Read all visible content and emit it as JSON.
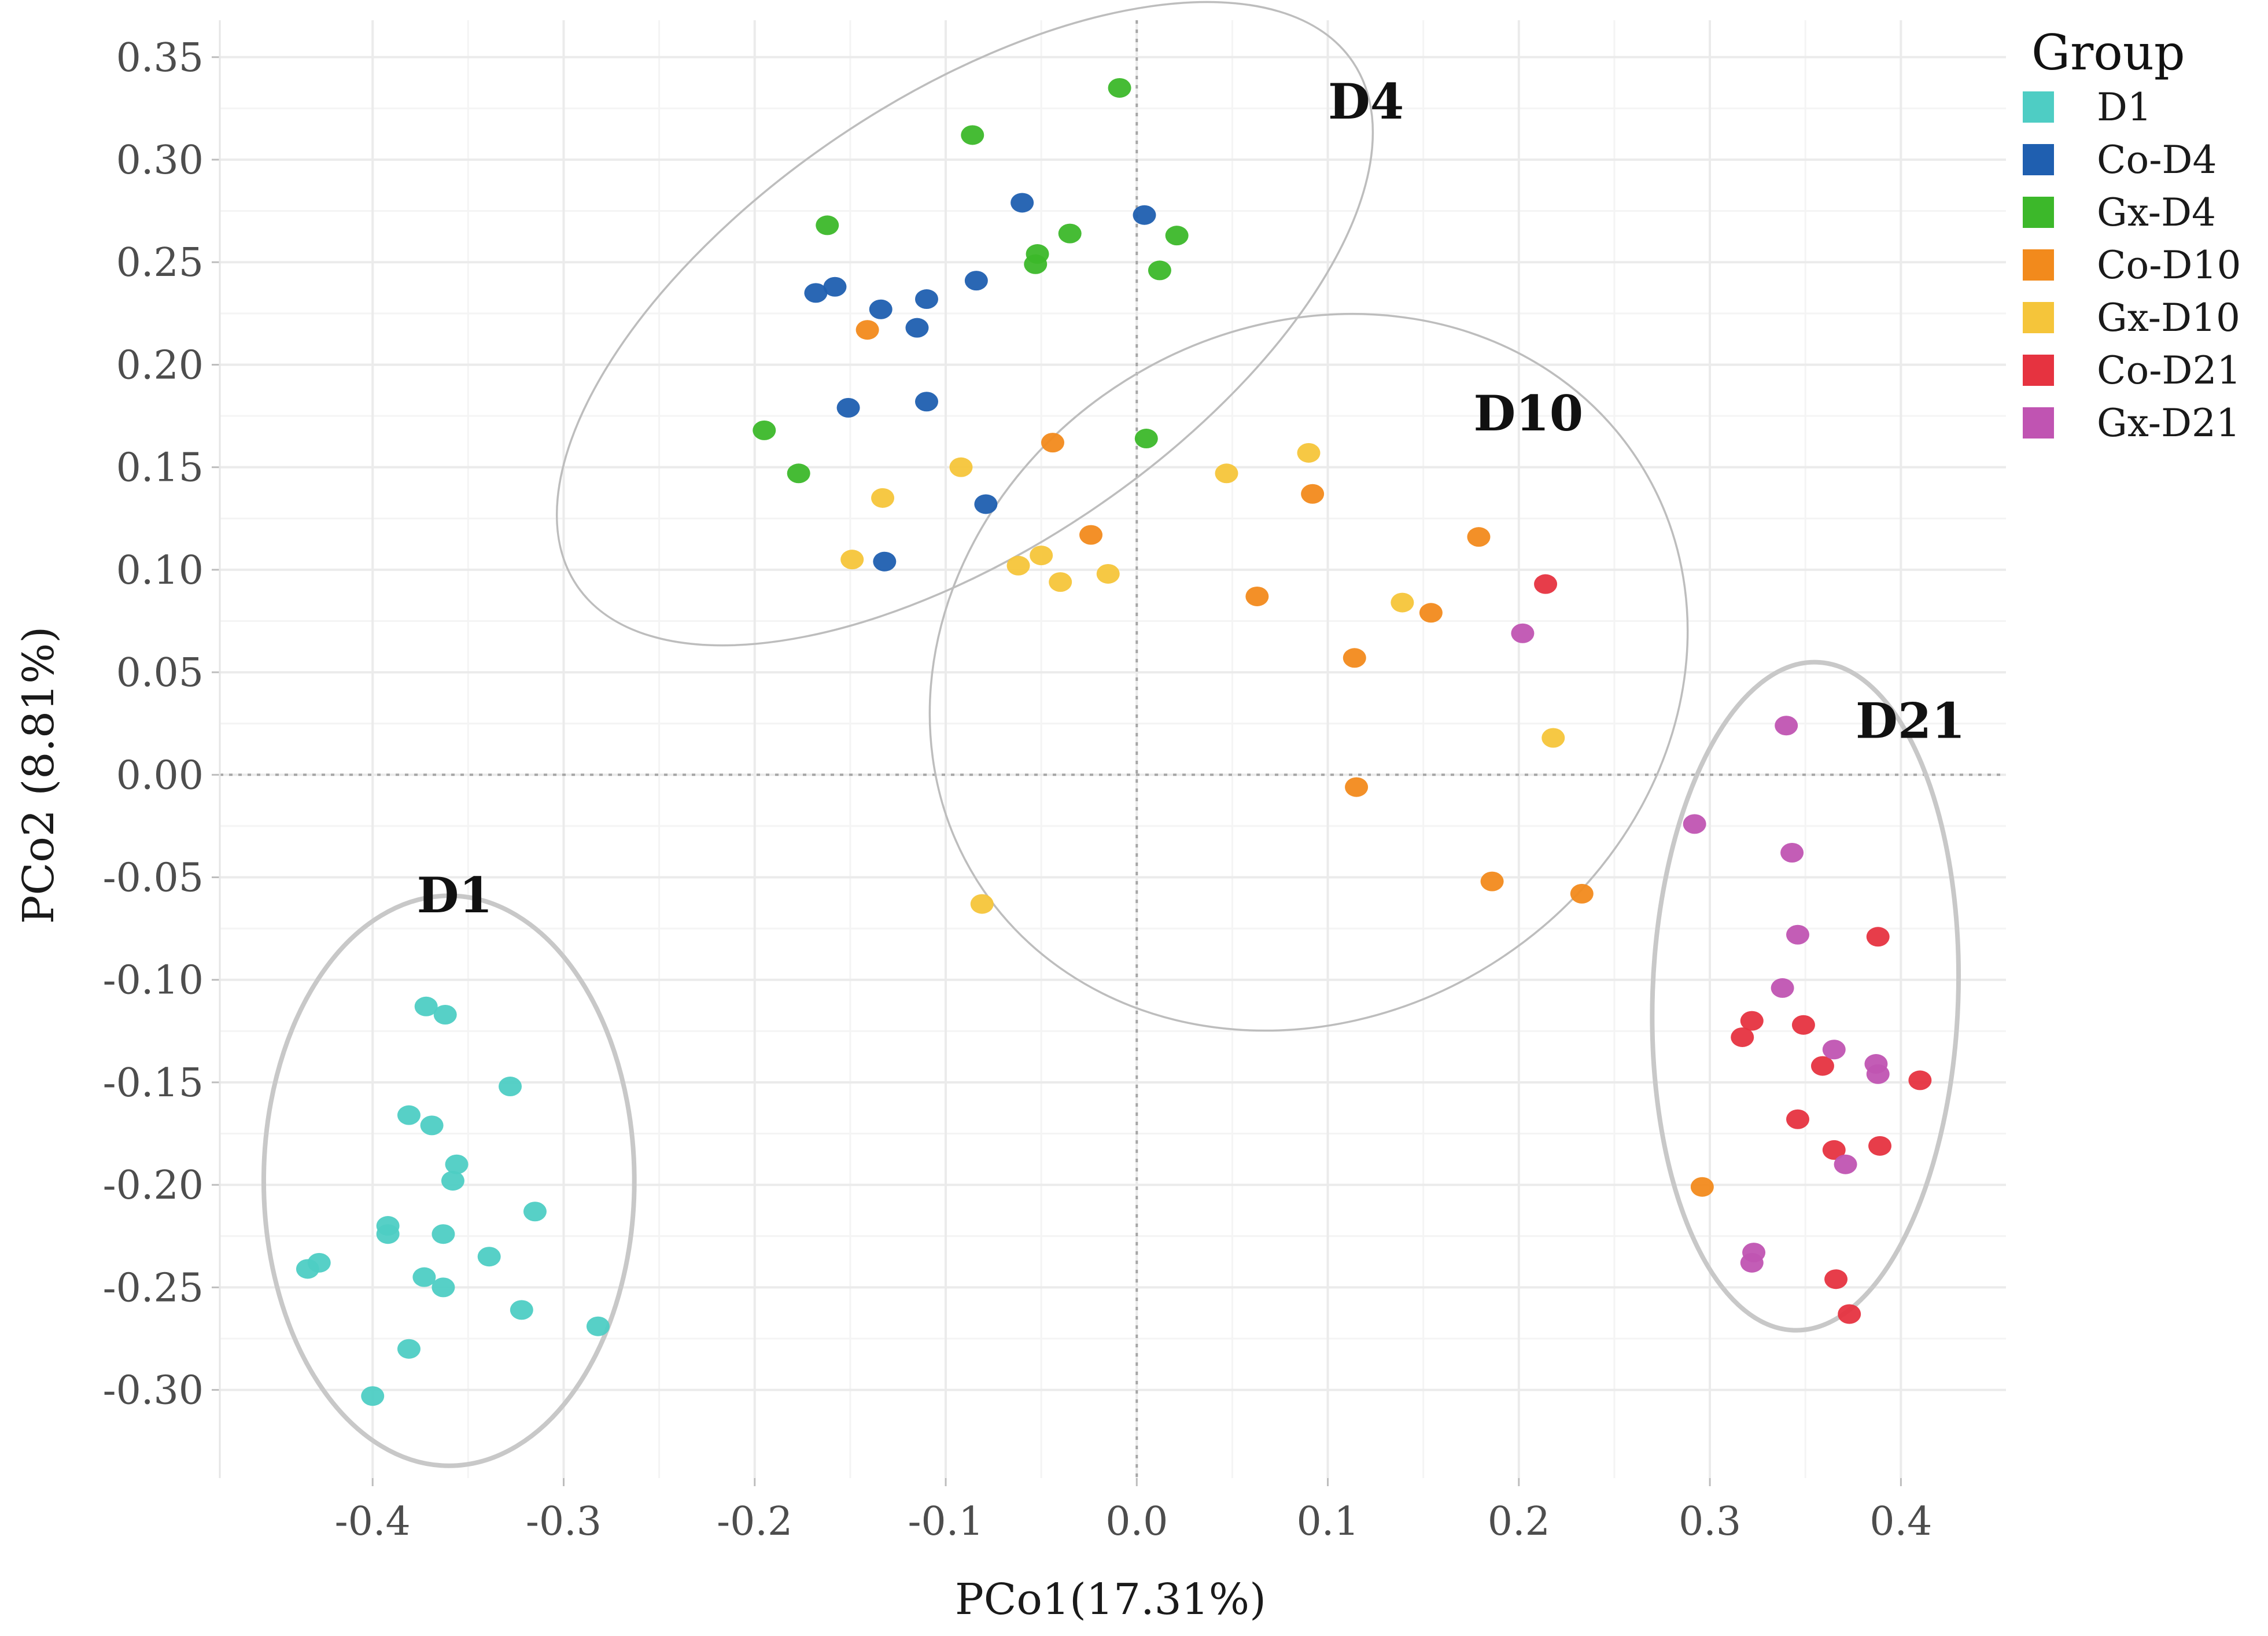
{
  "chart_data": {
    "type": "scatter",
    "title": "",
    "xlabel": "PCo1(17.31%)",
    "ylabel": "PCo2 (8.81%)",
    "xlim": [
      -0.48,
      0.455
    ],
    "ylim": [
      -0.343,
      0.368
    ],
    "xticks": [
      -0.4,
      -0.3,
      -0.2,
      -0.1,
      0.0,
      0.1,
      0.2,
      0.3,
      0.4
    ],
    "xtick_labels": [
      "-0.4",
      "-0.3",
      "-0.2",
      "-0.1",
      "0.0",
      "0.1",
      "0.2",
      "0.3",
      "0.4"
    ],
    "yticks": [
      0.35,
      0.3,
      0.25,
      0.2,
      0.15,
      0.1,
      0.05,
      0.0,
      -0.05,
      -0.1,
      -0.15,
      -0.2,
      -0.25,
      -0.3
    ],
    "ytick_labels": [
      "0.35",
      "0.30",
      "0.25",
      "0.20",
      "0.15",
      "0.10",
      "0.05",
      "0.00",
      "-0.05",
      "-0.10",
      "-0.15",
      "-0.20",
      "-0.25",
      "-0.30"
    ],
    "grid": true,
    "legend": {
      "title": "Group",
      "placement": "top-right"
    },
    "series": [
      {
        "name": "D1",
        "color": "#4ecdc4",
        "points": [
          [
            -0.372,
            -0.113
          ],
          [
            -0.362,
            -0.117
          ],
          [
            -0.328,
            -0.152
          ],
          [
            -0.381,
            -0.166
          ],
          [
            -0.369,
            -0.171
          ],
          [
            -0.356,
            -0.19
          ],
          [
            -0.358,
            -0.198
          ],
          [
            -0.315,
            -0.213
          ],
          [
            -0.392,
            -0.22
          ],
          [
            -0.392,
            -0.224
          ],
          [
            -0.363,
            -0.224
          ],
          [
            -0.339,
            -0.235
          ],
          [
            -0.373,
            -0.245
          ],
          [
            -0.363,
            -0.25
          ],
          [
            -0.434,
            -0.241
          ],
          [
            -0.428,
            -0.238
          ],
          [
            -0.322,
            -0.261
          ],
          [
            -0.282,
            -0.269
          ],
          [
            -0.381,
            -0.28
          ],
          [
            -0.4,
            -0.303
          ]
        ]
      },
      {
        "name": "Co-D4",
        "color": "#1f5fb0",
        "points": [
          [
            -0.06,
            0.279
          ],
          [
            0.004,
            0.273
          ],
          [
            -0.084,
            0.241
          ],
          [
            -0.158,
            0.238
          ],
          [
            -0.168,
            0.235
          ],
          [
            -0.11,
            0.232
          ],
          [
            -0.134,
            0.227
          ],
          [
            -0.115,
            0.218
          ],
          [
            -0.11,
            0.182
          ],
          [
            -0.151,
            0.179
          ],
          [
            -0.079,
            0.132
          ],
          [
            -0.132,
            0.104
          ]
        ]
      },
      {
        "name": "Gx-D4",
        "color": "#3cb82a",
        "points": [
          [
            -0.009,
            0.335
          ],
          [
            -0.086,
            0.312
          ],
          [
            -0.162,
            0.268
          ],
          [
            -0.035,
            0.264
          ],
          [
            0.021,
            0.263
          ],
          [
            -0.052,
            0.254
          ],
          [
            -0.053,
            0.249
          ],
          [
            0.012,
            0.246
          ],
          [
            -0.195,
            0.168
          ],
          [
            -0.177,
            0.147
          ],
          [
            0.005,
            0.164
          ]
        ]
      },
      {
        "name": "Co-D10",
        "color": "#f28a1c",
        "points": [
          [
            -0.141,
            0.217
          ],
          [
            -0.044,
            0.162
          ],
          [
            0.092,
            0.137
          ],
          [
            -0.024,
            0.117
          ],
          [
            0.179,
            0.116
          ],
          [
            0.063,
            0.087
          ],
          [
            0.154,
            0.079
          ],
          [
            0.114,
            0.057
          ],
          [
            0.115,
            -0.006
          ],
          [
            0.186,
            -0.052
          ],
          [
            0.233,
            -0.058
          ],
          [
            0.296,
            -0.201
          ]
        ]
      },
      {
        "name": "Gx-D10",
        "color": "#f5c53a",
        "points": [
          [
            -0.092,
            0.15
          ],
          [
            0.047,
            0.147
          ],
          [
            0.09,
            0.157
          ],
          [
            -0.133,
            0.135
          ],
          [
            -0.149,
            0.105
          ],
          [
            -0.05,
            0.107
          ],
          [
            -0.062,
            0.102
          ],
          [
            -0.04,
            0.094
          ],
          [
            -0.015,
            0.098
          ],
          [
            0.139,
            0.084
          ],
          [
            0.218,
            0.018
          ],
          [
            -0.081,
            -0.063
          ]
        ]
      },
      {
        "name": "Co-D21",
        "color": "#e63340",
        "points": [
          [
            0.214,
            0.093
          ],
          [
            0.388,
            -0.079
          ],
          [
            0.322,
            -0.12
          ],
          [
            0.317,
            -0.128
          ],
          [
            0.349,
            -0.122
          ],
          [
            0.41,
            -0.149
          ],
          [
            0.359,
            -0.142
          ],
          [
            0.346,
            -0.168
          ],
          [
            0.365,
            -0.183
          ],
          [
            0.389,
            -0.181
          ],
          [
            0.366,
            -0.246
          ],
          [
            0.373,
            -0.263
          ]
        ]
      },
      {
        "name": "Gx-D21",
        "color": "#c054b2",
        "points": [
          [
            0.202,
            0.069
          ],
          [
            0.34,
            0.024
          ],
          [
            0.292,
            -0.024
          ],
          [
            0.343,
            -0.038
          ],
          [
            0.346,
            -0.078
          ],
          [
            0.338,
            -0.104
          ],
          [
            0.365,
            -0.134
          ],
          [
            0.387,
            -0.141
          ],
          [
            0.388,
            -0.146
          ],
          [
            0.371,
            -0.19
          ],
          [
            0.323,
            -0.233
          ],
          [
            0.322,
            -0.238
          ]
        ]
      }
    ],
    "annotations": [
      {
        "id": "d4",
        "text": "D4",
        "x": 0.12,
        "y": 0.32
      },
      {
        "id": "d10",
        "text": "D10",
        "x": 0.205,
        "y": 0.168
      },
      {
        "id": "d21",
        "text": "D21",
        "x": 0.405,
        "y": 0.018
      },
      {
        "id": "d1",
        "text": "D1",
        "x": -0.357,
        "y": -0.067
      }
    ],
    "ellipses": [
      {
        "id": "d4",
        "cx": -0.09,
        "cy": 0.22,
        "rx": 0.245,
        "ry": 0.11,
        "angle_deg": 34,
        "line_weight": "thin"
      },
      {
        "id": "d10",
        "cx": 0.09,
        "cy": 0.05,
        "rx": 0.205,
        "ry": 0.168,
        "angle_deg": 32,
        "line_weight": "thin"
      },
      {
        "id": "d21",
        "cx": 0.35,
        "cy": -0.108,
        "rx": 0.08,
        "ry": 0.163,
        "angle_deg": -2,
        "line_weight": "thick"
      },
      {
        "id": "d1",
        "cx": -0.36,
        "cy": -0.198,
        "rx": 0.097,
        "ry": 0.139,
        "angle_deg": 0,
        "line_weight": "thick"
      }
    ]
  }
}
